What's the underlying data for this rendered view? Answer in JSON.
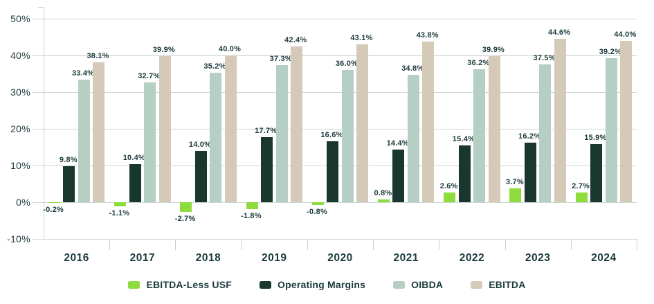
{
  "chart_data": {
    "type": "bar",
    "title": "",
    "xlabel": "",
    "ylabel": "",
    "categories": [
      "2016",
      "2017",
      "2018",
      "2019",
      "2020",
      "2021",
      "2022",
      "2023",
      "2024"
    ],
    "series": [
      {
        "name": "EBITDA-Less USF",
        "color": "#8edc3e",
        "values": [
          -0.2,
          -1.1,
          -2.7,
          -1.8,
          -0.8,
          0.8,
          2.6,
          3.7,
          2.7
        ]
      },
      {
        "name": "Operating Margins",
        "color": "#1a372f",
        "values": [
          9.8,
          10.4,
          14.0,
          17.7,
          16.6,
          14.4,
          15.4,
          16.2,
          15.9
        ]
      },
      {
        "name": "OIBDA",
        "color": "#b5cfc5",
        "values": [
          33.4,
          32.7,
          35.2,
          37.3,
          36.0,
          34.8,
          36.2,
          37.5,
          39.2
        ]
      },
      {
        "name": "EBITDA",
        "color": "#d5cab8",
        "values": [
          38.1,
          39.9,
          40.0,
          42.4,
          43.1,
          43.8,
          39.9,
          44.6,
          44.0
        ]
      }
    ],
    "ylim": [
      -10,
      50
    ],
    "y_ticks": [
      50,
      40,
      30,
      20,
      10,
      0,
      -10
    ],
    "y_tick_labels": [
      "50%",
      "40%",
      "30%",
      "20%",
      "10%",
      "0%",
      "-10%"
    ],
    "grid": true,
    "legend_position": "bottom",
    "value_label_suffix": "%"
  },
  "colors": {
    "text": "#1b3a3c",
    "gridline": "#ccd6d3",
    "axis": "#c7d1ce",
    "background": "#ffffff"
  }
}
